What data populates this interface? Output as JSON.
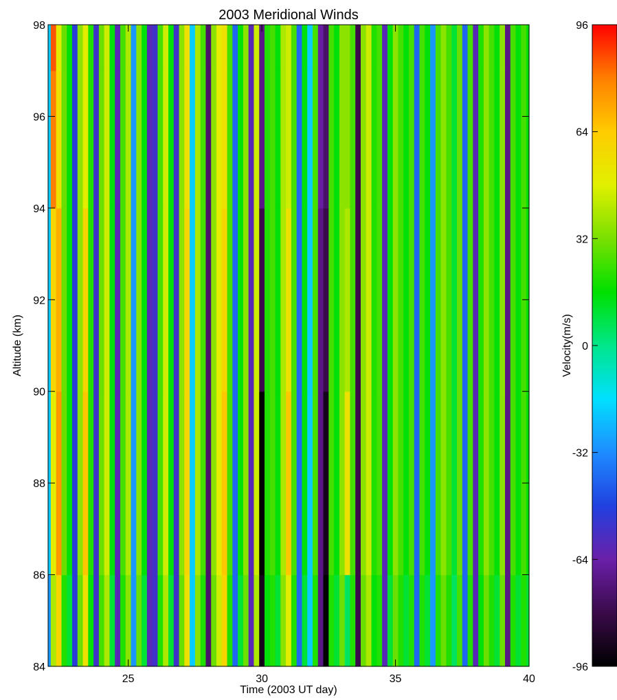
{
  "chart_data": {
    "type": "heatmap",
    "title": "2003 Meridional Winds",
    "xlabel": "Time (2003 UT day)",
    "ylabel": "Altitude (km)",
    "xlim": [
      22,
      40
    ],
    "ylim": [
      84,
      98
    ],
    "x_ticks": [
      25,
      30,
      35,
      40
    ],
    "y_ticks": [
      84,
      86,
      88,
      90,
      92,
      94,
      96,
      98
    ],
    "colorbar": {
      "label": "Velocity(m/s)",
      "range": [
        -96,
        96
      ],
      "ticks": [
        -96,
        -64,
        -32,
        0,
        32,
        64,
        96
      ],
      "colormap": [
        "#000000",
        "#3a0a4a",
        "#6a1fa8",
        "#2040e0",
        "#1e8cff",
        "#00e0ff",
        "#00e68a",
        "#00e000",
        "#7ae000",
        "#e0f000",
        "#ffcc00",
        "#ff7f00",
        "#ff0000"
      ]
    },
    "altitude_samples_km": [
      84,
      88,
      92,
      96,
      98
    ],
    "time_samples_day": [
      22.0,
      22.2,
      22.4,
      22.6,
      22.8,
      23.0,
      23.2,
      23.4,
      23.6,
      23.8,
      24.0,
      24.2,
      24.4,
      24.6,
      24.8,
      25.0,
      25.2,
      25.4,
      25.6,
      25.8,
      26.0,
      26.2,
      26.4,
      26.6,
      26.8,
      27.0,
      27.2,
      27.4,
      27.6,
      27.8,
      28.0,
      28.2,
      28.4,
      28.6,
      28.8,
      29.0,
      29.2,
      29.4,
      29.6,
      29.8,
      30.0,
      30.2,
      30.4,
      30.6,
      30.8,
      31.0,
      31.2,
      31.4,
      31.6,
      31.8,
      32.0,
      32.2,
      32.4,
      32.6,
      32.8,
      33.0,
      33.2,
      33.4,
      33.6,
      33.8,
      34.0,
      34.2,
      34.4,
      34.6,
      34.8,
      35.0,
      35.2,
      35.4,
      35.6,
      35.8,
      36.0,
      36.2,
      36.4,
      36.6,
      36.8,
      37.0,
      37.2,
      37.4,
      37.6,
      37.8,
      38.0,
      38.2,
      38.4,
      38.6,
      38.8,
      39.0,
      39.2,
      39.4,
      39.6,
      39.8,
      40.0
    ],
    "velocity_ms": [
      [
        -30,
        40,
        60,
        20,
        10,
        -50,
        30,
        55,
        15,
        -55,
        25,
        40,
        10,
        -60,
        20,
        35,
        -30,
        30,
        10,
        -60,
        -55,
        20,
        40,
        10,
        -55,
        30,
        55,
        -20,
        35,
        20,
        -75,
        30,
        45,
        60,
        20,
        -40,
        10,
        30,
        -60,
        40,
        -90,
        15,
        20,
        10,
        35,
        50,
        20,
        -40,
        10,
        -20,
        20,
        -70,
        -96,
        20,
        10,
        30,
        5,
        20,
        -80,
        30,
        40,
        15,
        20,
        -60,
        10,
        30,
        20,
        10,
        20,
        -40,
        20,
        10,
        -30,
        20,
        30,
        20,
        5,
        25,
        -40,
        20,
        -60,
        15,
        30,
        20,
        10,
        30,
        -70,
        20,
        10,
        20,
        10
      ],
      [
        -20,
        50,
        75,
        30,
        15,
        -50,
        35,
        65,
        20,
        -55,
        30,
        45,
        15,
        -60,
        25,
        40,
        -30,
        35,
        15,
        -60,
        -55,
        25,
        45,
        15,
        -55,
        35,
        60,
        -20,
        40,
        25,
        -75,
        35,
        50,
        65,
        25,
        -40,
        15,
        35,
        -60,
        45,
        -96,
        20,
        25,
        15,
        40,
        65,
        25,
        -40,
        15,
        -20,
        25,
        -70,
        -90,
        25,
        15,
        35,
        55,
        25,
        -80,
        35,
        45,
        20,
        25,
        -60,
        15,
        35,
        25,
        15,
        25,
        -40,
        25,
        15,
        -30,
        25,
        35,
        25,
        10,
        30,
        -40,
        25,
        -60,
        20,
        35,
        25,
        15,
        35,
        -70,
        25,
        15,
        25,
        15
      ],
      [
        -20,
        60,
        70,
        30,
        15,
        -50,
        35,
        60,
        20,
        -55,
        30,
        45,
        15,
        -60,
        25,
        40,
        -30,
        35,
        15,
        -60,
        -55,
        25,
        45,
        15,
        -55,
        35,
        60,
        -20,
        40,
        25,
        -75,
        35,
        50,
        60,
        25,
        -40,
        15,
        35,
        -60,
        45,
        -80,
        20,
        25,
        15,
        40,
        55,
        25,
        -40,
        15,
        -20,
        25,
        -70,
        -80,
        25,
        15,
        35,
        40,
        25,
        -80,
        35,
        45,
        20,
        25,
        -60,
        15,
        35,
        25,
        15,
        25,
        -40,
        25,
        15,
        -30,
        25,
        35,
        25,
        10,
        30,
        -40,
        25,
        -60,
        20,
        35,
        25,
        15,
        35,
        -70,
        25,
        15,
        25,
        15
      ],
      [
        -20,
        80,
        55,
        30,
        15,
        -50,
        35,
        50,
        20,
        -55,
        30,
        45,
        15,
        -60,
        25,
        40,
        -30,
        35,
        15,
        -60,
        -55,
        25,
        45,
        15,
        -55,
        35,
        55,
        -20,
        40,
        25,
        -75,
        35,
        50,
        55,
        25,
        -40,
        15,
        35,
        -60,
        45,
        -70,
        20,
        25,
        15,
        40,
        45,
        25,
        -40,
        15,
        -20,
        25,
        -65,
        -75,
        25,
        15,
        35,
        35,
        25,
        -80,
        35,
        45,
        20,
        25,
        -60,
        15,
        35,
        25,
        15,
        25,
        -40,
        25,
        15,
        -30,
        25,
        35,
        25,
        10,
        30,
        -40,
        25,
        -60,
        20,
        35,
        25,
        15,
        35,
        -70,
        25,
        15,
        25,
        15
      ],
      [
        -20,
        85,
        50,
        30,
        15,
        -50,
        35,
        50,
        20,
        -55,
        30,
        45,
        15,
        -60,
        25,
        40,
        -30,
        35,
        15,
        -60,
        -55,
        25,
        45,
        15,
        -55,
        35,
        55,
        -20,
        40,
        25,
        -75,
        35,
        50,
        55,
        25,
        -40,
        15,
        35,
        -60,
        45,
        -70,
        20,
        25,
        15,
        40,
        45,
        25,
        -40,
        15,
        -20,
        25,
        -65,
        -75,
        25,
        15,
        35,
        35,
        25,
        -80,
        35,
        45,
        20,
        25,
        -60,
        15,
        35,
        25,
        15,
        25,
        -40,
        25,
        15,
        -30,
        25,
        35,
        25,
        10,
        30,
        -40,
        25,
        -60,
        20,
        35,
        25,
        15,
        35,
        -70,
        25,
        15,
        25,
        15
      ]
    ]
  }
}
